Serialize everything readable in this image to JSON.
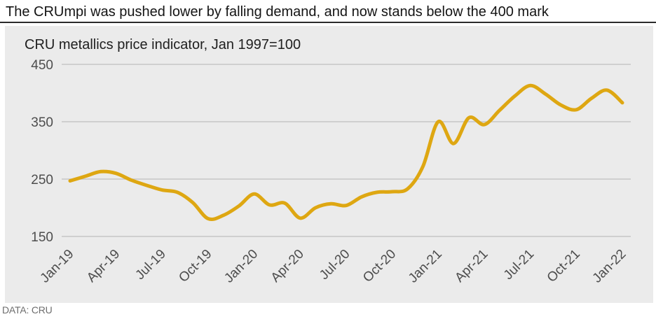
{
  "header": {
    "title": "The CRUmpi was pushed lower by falling demand, and now stands below the 400 mark"
  },
  "footer": {
    "source": "DATA: CRU"
  },
  "colors": {
    "line": "#dea712",
    "panel_bg": "#ebebeb",
    "gridline": "#c6c6c6",
    "axis_text": "#4d4d4d",
    "title_text": "#141414",
    "source_text": "#6e6e6e"
  },
  "chart_data": {
    "type": "line",
    "title": "The CRUmpi was pushed lower by falling demand, and now stands below the 400 mark",
    "subtitle": "CRU metallics price indicator, Jan 1997=100",
    "source": "DATA: CRU",
    "categories": [
      "Jan-19",
      "Feb-19",
      "Mar-19",
      "Apr-19",
      "May-19",
      "Jun-19",
      "Jul-19",
      "Aug-19",
      "Sep-19",
      "Oct-19",
      "Nov-19",
      "Dec-19",
      "Jan-20",
      "Feb-20",
      "Mar-20",
      "Apr-20",
      "May-20",
      "Jun-20",
      "Jul-20",
      "Aug-20",
      "Sep-20",
      "Oct-20",
      "Nov-20",
      "Dec-20",
      "Jan-21",
      "Feb-21",
      "Mar-21",
      "Apr-21",
      "May-21",
      "Jun-21",
      "Jul-21",
      "Aug-21",
      "Sep-21",
      "Oct-21",
      "Nov-21",
      "Dec-21",
      "Jan-22"
    ],
    "x_tick_labels": [
      "Jan-19",
      "Apr-19",
      "Jul-19",
      "Oct-19",
      "Jan-20",
      "Apr-20",
      "Jul-20",
      "Oct-20",
      "Jan-21",
      "Apr-21",
      "Jul-21",
      "Oct-21",
      "Jan-22"
    ],
    "series": [
      {
        "name": "CRU metallics price indicator",
        "values": [
          247,
          255,
          263,
          260,
          248,
          239,
          231,
          227,
          209,
          181,
          187,
          203,
          224,
          205,
          208,
          182,
          200,
          207,
          204,
          219,
          227,
          228,
          233,
          272,
          350,
          312,
          357,
          345,
          370,
          395,
          413,
          398,
          379,
          371,
          391,
          405,
          383
        ]
      }
    ],
    "ylim": [
      150,
      450
    ],
    "yticks": [
      450,
      350,
      250,
      150
    ],
    "xlabel": "",
    "ylabel": "",
    "grid": "horizontal",
    "legend": "none"
  }
}
